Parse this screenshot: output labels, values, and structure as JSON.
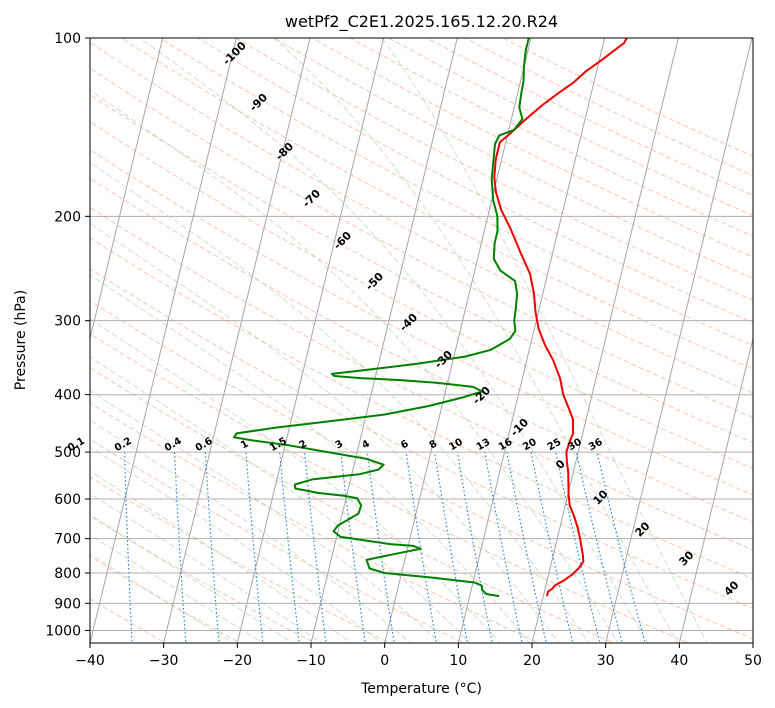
{
  "chart_data": {
    "type": "line",
    "title": "wetPf2_C2E1.2025.165.12.20.R24",
    "xlabel": "Temperature (°C)",
    "ylabel": "Pressure (hPa)",
    "xlim": [
      -40,
      50
    ],
    "ylim": [
      1050,
      100
    ],
    "yscale": "log",
    "grid": true,
    "x_ticks": [
      -40,
      -30,
      -20,
      -10,
      0,
      10,
      20,
      30,
      40,
      50
    ],
    "y_ticks": [
      100,
      200,
      300,
      400,
      500,
      600,
      700,
      800,
      900,
      1000
    ],
    "series": [
      {
        "role": "temperature",
        "color": "#ee0000",
        "points": [
          [
            20.5,
            875
          ],
          [
            20.5,
            860
          ],
          [
            21.0,
            850
          ],
          [
            21.2,
            840
          ],
          [
            22.2,
            825
          ],
          [
            23.2,
            805
          ],
          [
            23.9,
            785
          ],
          [
            24.3,
            765
          ],
          [
            24.0,
            745
          ],
          [
            23.6,
            725
          ],
          [
            23.1,
            700
          ],
          [
            22.4,
            670
          ],
          [
            21.5,
            640
          ],
          [
            20.6,
            615
          ],
          [
            20.1,
            590
          ],
          [
            19.7,
            565
          ],
          [
            19.3,
            540
          ],
          [
            18.8,
            520
          ],
          [
            18.4,
            500
          ],
          [
            18.5,
            480
          ],
          [
            18.7,
            465
          ],
          [
            18.2,
            440
          ],
          [
            17.2,
            420
          ],
          [
            16.1,
            400
          ],
          [
            15.1,
            375
          ],
          [
            13.6,
            350
          ],
          [
            12.0,
            330
          ],
          [
            10.6,
            310
          ],
          [
            9.6,
            290
          ],
          [
            8.8,
            270
          ],
          [
            7.6,
            250
          ],
          [
            5.6,
            230
          ],
          [
            3.5,
            210
          ],
          [
            1.6,
            195
          ],
          [
            0.3,
            182
          ],
          [
            -0.4,
            172
          ],
          [
            -0.8,
            160
          ],
          [
            -0.8,
            150
          ],
          [
            0.3,
            145
          ],
          [
            2.0,
            137
          ],
          [
            3.7,
            130
          ],
          [
            5.5,
            124
          ],
          [
            7.2,
            119
          ],
          [
            8.5,
            114
          ],
          [
            10.3,
            109
          ],
          [
            11.7,
            105
          ],
          [
            12.8,
            102
          ],
          [
            13.0,
            100
          ]
        ]
      },
      {
        "role": "dewpoint",
        "color": "#008000",
        "points": [
          [
            14.0,
            875
          ],
          [
            12.2,
            868
          ],
          [
            11.5,
            855
          ],
          [
            11.3,
            840
          ],
          [
            10.2,
            830
          ],
          [
            4.5,
            815
          ],
          [
            -2.3,
            800
          ],
          [
            -4.5,
            786
          ],
          [
            -5.2,
            760
          ],
          [
            -2.0,
            745
          ],
          [
            1.8,
            728
          ],
          [
            0.7,
            720
          ],
          [
            -2.5,
            715
          ],
          [
            -6.0,
            705
          ],
          [
            -9.5,
            695
          ],
          [
            -10.6,
            680
          ],
          [
            -10.2,
            665
          ],
          [
            -9.0,
            650
          ],
          [
            -7.8,
            635
          ],
          [
            -7.7,
            615
          ],
          [
            -8.5,
            598
          ],
          [
            -10.5,
            592
          ],
          [
            -14.0,
            586
          ],
          [
            -17.2,
            576
          ],
          [
            -17.4,
            567
          ],
          [
            -15.2,
            556
          ],
          [
            -9.0,
            545
          ],
          [
            -6.5,
            535
          ],
          [
            -6.0,
            525
          ],
          [
            -8.6,
            513
          ],
          [
            -14.0,
            500
          ],
          [
            -19.5,
            487
          ],
          [
            -24.5,
            478
          ],
          [
            -27.2,
            472
          ],
          [
            -27.0,
            465
          ],
          [
            -22.0,
            455
          ],
          [
            -15.0,
            444
          ],
          [
            -7.5,
            432
          ],
          [
            -1.8,
            418
          ],
          [
            2.3,
            405
          ],
          [
            5.0,
            395
          ],
          [
            3.6,
            388
          ],
          [
            -1.5,
            382
          ],
          [
            -6.5,
            378
          ],
          [
            -12.0,
            375
          ],
          [
            -15.6,
            372
          ],
          [
            -16.0,
            369
          ],
          [
            -12.0,
            364
          ],
          [
            -5.0,
            355
          ],
          [
            1.5,
            345
          ],
          [
            4.8,
            336
          ],
          [
            7.0,
            322
          ],
          [
            7.5,
            312
          ],
          [
            7.0,
            300
          ],
          [
            6.8,
            285
          ],
          [
            6.5,
            270
          ],
          [
            5.8,
            257
          ],
          [
            3.5,
            247
          ],
          [
            2.2,
            236
          ],
          [
            1.8,
            222
          ],
          [
            1.8,
            212
          ],
          [
            1.3,
            200
          ],
          [
            0.2,
            188
          ],
          [
            -0.7,
            173
          ],
          [
            -1.1,
            160
          ],
          [
            -1.4,
            151
          ],
          [
            -1.1,
            146
          ],
          [
            0.7,
            143
          ],
          [
            1.5,
            137
          ],
          [
            0.7,
            131
          ],
          [
            0.5,
            124
          ],
          [
            0.4,
            118
          ],
          [
            0.0,
            112
          ],
          [
            -0.3,
            105
          ],
          [
            -0.3,
            100
          ]
        ]
      }
    ],
    "dry_adiabat_labels": [
      "-100",
      "-90",
      "-80",
      "-70",
      "-60",
      "-50",
      "-40",
      "-30",
      "-20",
      "-10",
      "0",
      "10",
      "20",
      "30",
      "40"
    ],
    "mixing_ratio_labels": [
      "0.1",
      "0.2",
      "0.4",
      "0.6",
      "1",
      "1.5",
      "2",
      "3",
      "4",
      "6",
      "8",
      "10",
      "13",
      "16",
      "20",
      "25",
      "30",
      "36"
    ],
    "mixing_ratio_values": [
      0.1,
      0.2,
      0.4,
      0.6,
      1,
      1.5,
      2,
      3,
      4,
      6,
      8,
      10,
      13,
      16,
      20,
      25,
      30,
      36
    ],
    "colors": {
      "isotherm": "#a6a6a6",
      "isobar": "#b0b0b0",
      "dry_adiabat": "#f7a07c",
      "moist_adiabat": "#9ccf9c",
      "mixing_ratio": "#1e7fd6",
      "adiabat_label_cold": "#1f5fa0",
      "adiabat_label_warm": "#d62728",
      "adiabat_label_zero": "#808080",
      "mixing_label": "#1e88e5"
    }
  }
}
